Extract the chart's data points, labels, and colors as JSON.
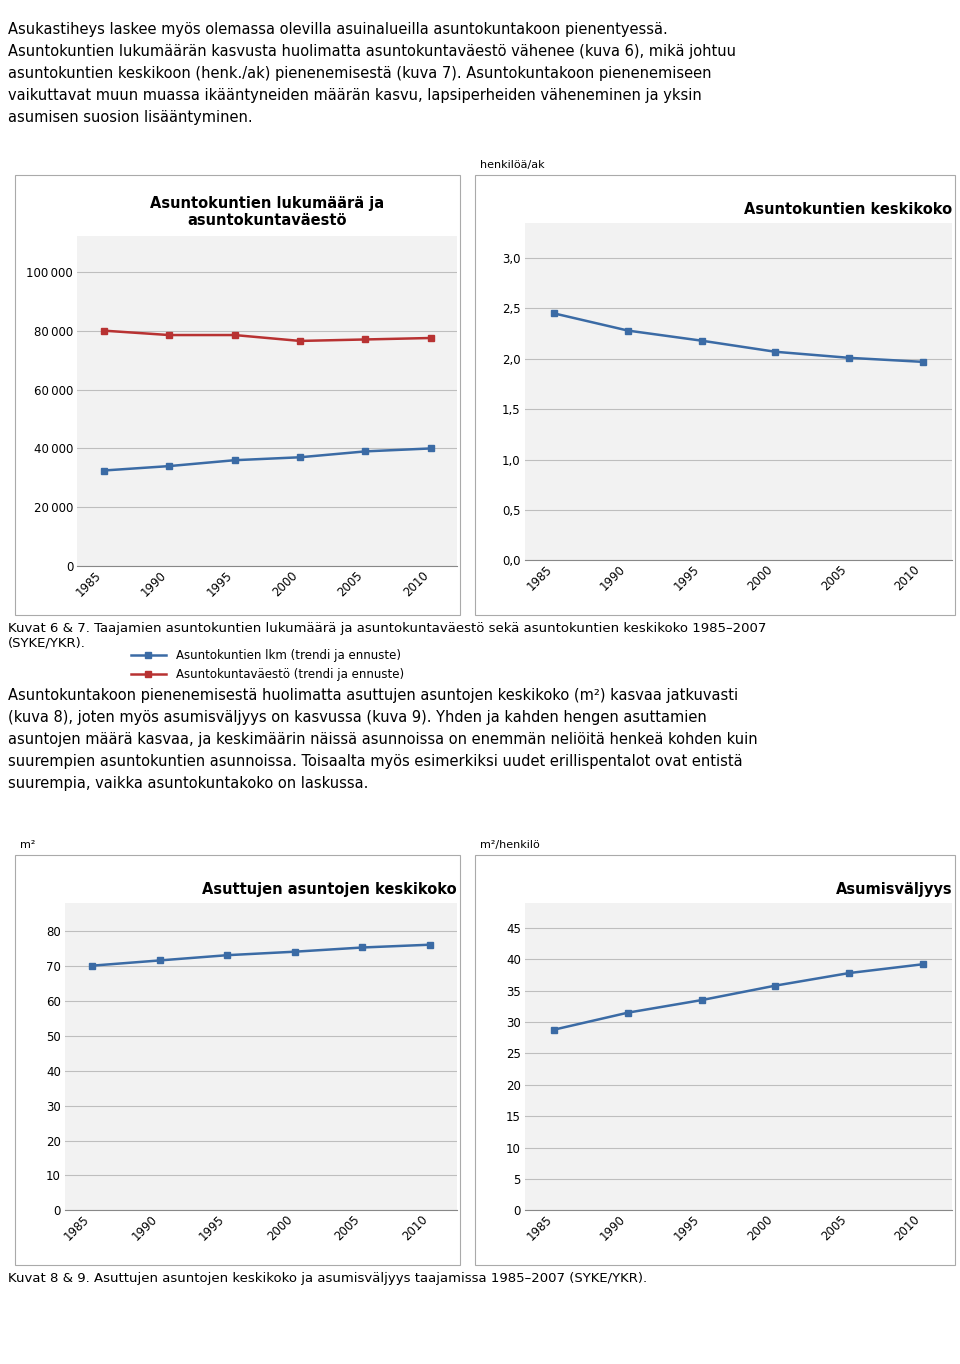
{
  "years": [
    1985,
    1990,
    1995,
    2000,
    2005,
    2010
  ],
  "xticks": [
    1985,
    1990,
    1995,
    2000,
    2005,
    2010
  ],
  "chart1": {
    "title": "Asuntokuntien lkm (trendi ja ennuste)",
    "title2": "Asuntokuntaväestö (trendi ja ennuste)",
    "chart_title": "Asuntokuntien lukumäärä ja\nasuntokuntaväestö",
    "yticks": [
      0,
      20000,
      40000,
      60000,
      80000,
      100000
    ],
    "ylim": [
      0,
      112000
    ],
    "xlim": [
      1983,
      2012
    ],
    "blue_line": [
      32500,
      34000,
      36000,
      37000,
      39000,
      40000
    ],
    "red_line": [
      80000,
      78500,
      78500,
      76500,
      77000,
      77500
    ]
  },
  "chart2": {
    "chart_title": "Asuntokuntien keskikoko",
    "ylabel_unit": "henkilöä/ak",
    "yticks": [
      0.0,
      0.5,
      1.0,
      1.5,
      2.0,
      2.5,
      3.0
    ],
    "ylim": [
      0.0,
      3.35
    ],
    "xlim": [
      1983,
      2012
    ],
    "blue_line": [
      2.45,
      2.28,
      2.18,
      2.07,
      2.01,
      1.97
    ]
  },
  "chart3": {
    "chart_title": "Asuttujen asuntojen keskikoko",
    "ylabel_unit": "m²",
    "yticks": [
      0,
      10,
      20,
      30,
      40,
      50,
      60,
      70,
      80
    ],
    "ylim": [
      0,
      88
    ],
    "xlim": [
      1983,
      2012
    ],
    "blue_line": [
      70.0,
      71.5,
      73.0,
      74.0,
      75.2,
      76.0
    ]
  },
  "chart4": {
    "chart_title": "Asumisväljyys",
    "ylabel_unit": "m²/henkilö",
    "yticks": [
      0,
      5,
      10,
      15,
      20,
      25,
      30,
      35,
      40,
      45
    ],
    "ylim": [
      0,
      49
    ],
    "xlim": [
      1983,
      2012
    ],
    "blue_line": [
      28.8,
      31.5,
      33.5,
      35.8,
      37.8,
      39.2
    ]
  },
  "legend1_blue": "Asuntokuntien lkm (trendi ja ennuste)",
  "legend1_red": "Asuntokuntaväestö (trendi ja ennuste)",
  "caption1": "Kuvat 6 & 7. Taajamien asuntokuntien lukumäärä ja asuntokuntaväestö sekä asuntokuntien keskikoko 1985–2007\n(SYKE/YKR).",
  "caption2": "Kuvat 8 & 9. Asuttujen asuntojen keskikoko ja asumisväljyys taajamissa 1985–2007 (SYKE/YKR).",
  "top_text_line1": "Asukastiheys laskee myös olemassa olevilla asuinalueilla asuntokuntakoon pienentyessä.",
  "top_text_line2": "Asuntokuntien lukumäärän kasvusta huolimatta asuntokuntaväestö vähenee (kuva 6), mikä johtuu",
  "top_text_line3": "asuntokuntien keskikoon (henk./ak) pienenemisestä (kuva 7). Asuntokuntakoon pienenemiseen",
  "top_text_line4": "vaikuttavat muun muassa ikääntyneiden määrän kasvu, lapsiperheiden väheneminen ja yksin",
  "top_text_line5": "asumisen suosion lisääntyminen.",
  "mid_text_line1": "Asuntokuntakoon pienenemisestä huolimatta asuttujen asuntojen keskikoko (m²) kasvaa jatkuvasti",
  "mid_text_line2": "(kuva 8), joten myös asumisväljyys on kasvussa (kuva 9). Yhden ja kahden hengen asuttamien",
  "mid_text_line3": "asuntojen määrä kasvaa, ja keskimäärin näissä asunnoissa on enemmän neliöitä henkeä kohden kuin",
  "mid_text_line4": "suurempien asuntokuntien asunnoissa. Toisaalta myös esimerkiksi uudet erillispentalot ovat entistä",
  "mid_text_line5": "suurempia, vaikka asuntokuntakoko on laskussa.",
  "blue_color": "#3B6BA5",
  "red_color": "#B83232",
  "line_width": 1.8,
  "marker": "s",
  "marker_size": 4,
  "bg_color": "#ffffff",
  "chart_bg": "#F2F2F2",
  "grid_color": "#BEBEBE",
  "border_color": "#888888"
}
